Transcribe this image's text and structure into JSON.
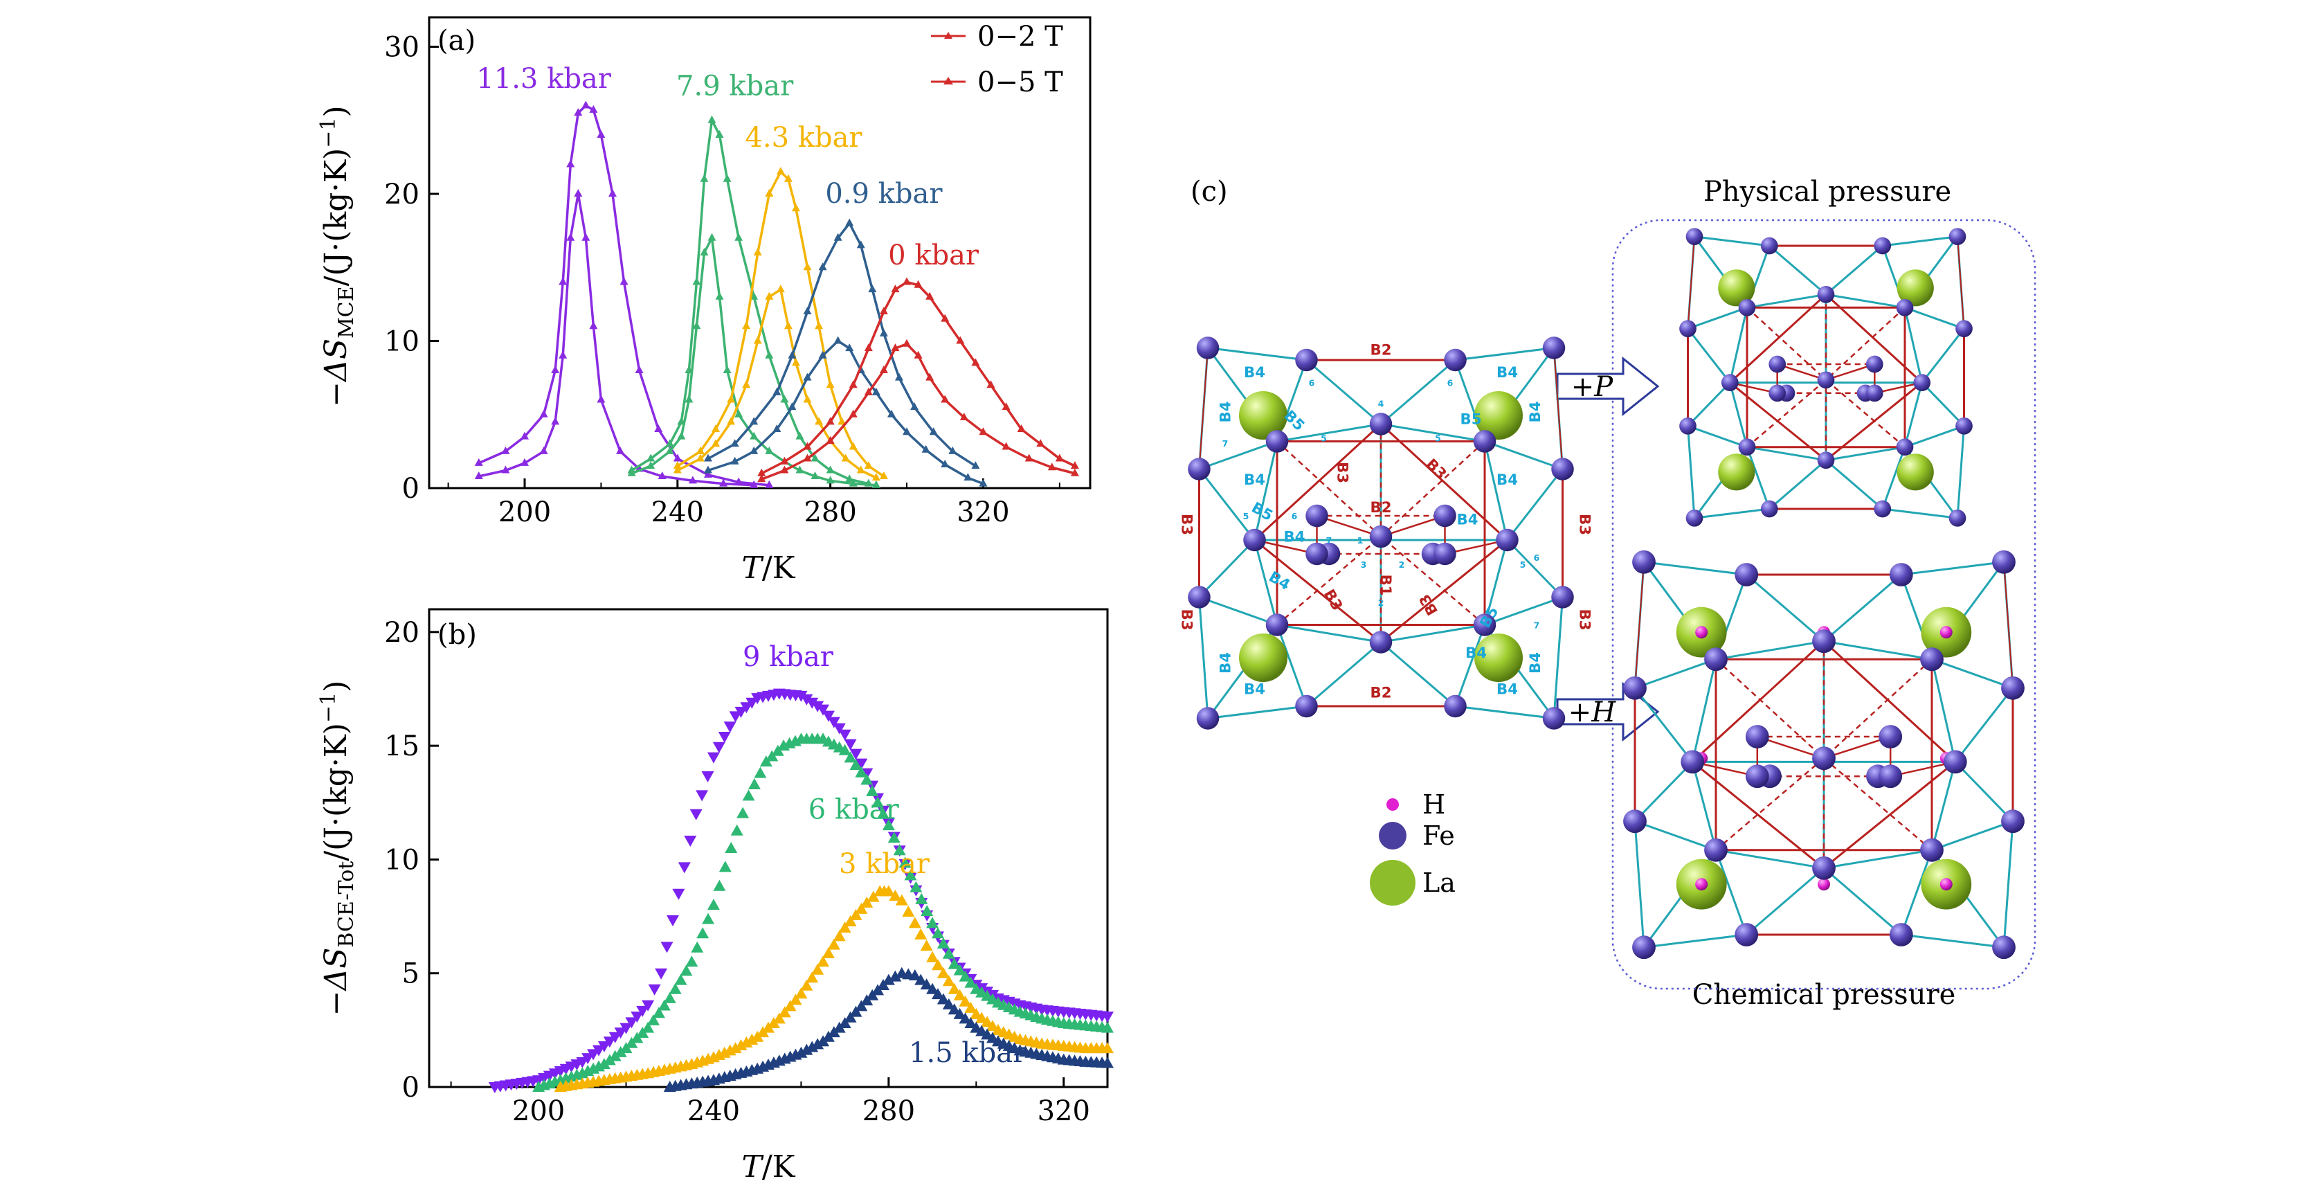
{
  "panel_a": {
    "tag": "(a)",
    "ylabel_pre": "−ΔS",
    "ylabel_sub": "MCE",
    "ylabel_post": "/(J·(kg·K)",
    "ylabel_exp": "−1",
    "ylabel_close": ")",
    "xlabel_var": "T",
    "xlabel_unit": "/K",
    "legend": [
      {
        "label": "0−2 T",
        "color": "#d42b2b"
      },
      {
        "label": "0−5 T",
        "color": "#d42b2b"
      }
    ]
  },
  "panel_b": {
    "tag": "(b)",
    "ylabel_pre": "−ΔS",
    "ylabel_sub": "BCE-Tot",
    "ylabel_post": "/(J·(kg·K)",
    "ylabel_exp": "−1",
    "ylabel_close": ")",
    "xlabel_var": "T",
    "xlabel_unit": "/K"
  },
  "panel_c": {
    "tag": "(c)",
    "physical_label": "Physical pressure",
    "chemical_label": "Chemical pressure",
    "arrow_p": "+P",
    "arrow_h": "+H",
    "legend": [
      {
        "label": "H",
        "color": "#e020d0"
      },
      {
        "label": "Fe",
        "color": "#4a3f9e"
      },
      {
        "label": "La",
        "color": "#8dbd2a"
      }
    ],
    "bond_labels_cyan": [
      "B4",
      "B4",
      "B4",
      "B4",
      "B4",
      "B4",
      "B4",
      "B4",
      "B4",
      "B4",
      "B5",
      "B5",
      "B5",
      "B5",
      "B4",
      "B4",
      "B4",
      "B4"
    ],
    "bond_labels_red": [
      "B2",
      "B2",
      "B2",
      "B1",
      "B3",
      "B3",
      "B3",
      "B3",
      "B3",
      "B3",
      "B3",
      "B3"
    ],
    "site_numbers": [
      "1",
      "2",
      "3",
      "4",
      "5",
      "6",
      "7"
    ]
  },
  "chart_data": [
    {
      "type": "line",
      "panel": "a",
      "xlim": [
        175,
        348
      ],
      "ylim": [
        0,
        32
      ],
      "xticks": [
        200,
        240,
        280,
        320
      ],
      "yticks": [
        0,
        10,
        20,
        30
      ],
      "legend_position": "top-right",
      "series": [
        {
          "name": "11.3 kbar",
          "field": "0−5 T",
          "color": "#8a2be2",
          "x": [
            188,
            195,
            200,
            205,
            208,
            210,
            212,
            214,
            216,
            218,
            220,
            223,
            226,
            230,
            235,
            240,
            248,
            256,
            264
          ],
          "y": [
            1.7,
            2.5,
            3.5,
            5,
            8,
            14,
            22,
            25.5,
            26,
            25.7,
            24,
            20,
            14,
            8,
            4,
            2,
            0.9,
            0.4,
            0.2
          ]
        },
        {
          "name": "",
          "field": "0−2 T",
          "color": "#8a2be2",
          "x": [
            188,
            195,
            200,
            205,
            208,
            210,
            212,
            214,
            216,
            218,
            220,
            225,
            230,
            236,
            244,
            252,
            260
          ],
          "y": [
            0.8,
            1.2,
            1.7,
            2.5,
            4.5,
            9,
            17,
            20,
            17,
            11,
            6,
            2.5,
            1.3,
            0.8,
            0.5,
            0.3,
            0.2
          ]
        },
        {
          "name": "7.9 kbar",
          "field": "0−5 T",
          "color": "#3cb371",
          "x": [
            228,
            233,
            238,
            241,
            243,
            245,
            247,
            249,
            251,
            253,
            256,
            260,
            264,
            268,
            272,
            276,
            280,
            285,
            290
          ],
          "y": [
            1.2,
            2,
            3,
            4.5,
            8,
            14,
            21,
            25,
            24,
            21,
            17,
            13,
            9,
            6,
            3.5,
            2,
            1.2,
            0.6,
            0.3
          ]
        },
        {
          "name": "",
          "field": "0−2 T",
          "color": "#3cb371",
          "x": [
            228,
            233,
            238,
            241,
            243,
            245,
            247,
            249,
            251,
            253,
            256,
            260,
            264,
            268,
            272,
            276,
            280,
            286,
            292
          ],
          "y": [
            1,
            1.5,
            2.5,
            3.5,
            6,
            11,
            16,
            17,
            13,
            8,
            5,
            3.5,
            2.5,
            1.8,
            1.2,
            0.8,
            0.5,
            0.3,
            0.2
          ]
        },
        {
          "name": "4.3 kbar",
          "field": "0−5 T",
          "color": "#f4b400",
          "x": [
            240,
            246,
            250,
            254,
            258,
            261,
            264,
            267,
            269,
            271,
            274,
            277,
            280,
            283,
            286,
            290,
            294
          ],
          "y": [
            1.5,
            2.5,
            4,
            6,
            11,
            16,
            20,
            21.5,
            21,
            19,
            15,
            11,
            7,
            4.5,
            2.8,
            1.5,
            0.8
          ]
        },
        {
          "name": "",
          "field": "0−2 T",
          "color": "#f4b400",
          "x": [
            240,
            246,
            250,
            254,
            258,
            261,
            264,
            267,
            269,
            271,
            274,
            277,
            280,
            284,
            288,
            292
          ],
          "y": [
            1.2,
            2,
            3,
            4.5,
            7,
            10,
            13,
            13.5,
            11,
            8.5,
            6,
            4.5,
            3.2,
            2,
            1.2,
            0.7
          ]
        },
        {
          "name": "0.9 kbar",
          "field": "0−5 T",
          "color": "#2f5f8f",
          "x": [
            248,
            255,
            260,
            266,
            270,
            274,
            278,
            282,
            285,
            288,
            291,
            294,
            298,
            302,
            307,
            312,
            318
          ],
          "y": [
            2,
            3,
            4.5,
            6.5,
            9,
            12,
            15,
            17,
            18,
            16.5,
            13.5,
            10.5,
            7.5,
            5.5,
            3.8,
            2.5,
            1.5
          ]
        },
        {
          "name": "",
          "field": "0−2 T",
          "color": "#2f5f8f",
          "x": [
            248,
            255,
            260,
            266,
            270,
            274,
            278,
            282,
            285,
            288,
            292,
            296,
            300,
            305,
            310,
            316,
            320
          ],
          "y": [
            1.2,
            1.8,
            2.5,
            4,
            5.5,
            7.5,
            9,
            10,
            9.5,
            8,
            6.5,
            5,
            3.8,
            2.6,
            1.6,
            0.7,
            0.3
          ]
        },
        {
          "name": "0 kbar",
          "field": "0−5 T",
          "color": "#d42b2b",
          "x": [
            262,
            268,
            274,
            280,
            286,
            290,
            294,
            297,
            300,
            303,
            306,
            310,
            314,
            318,
            322,
            326,
            330,
            335,
            340,
            344
          ],
          "y": [
            1,
            1.8,
            2.8,
            4.5,
            7,
            9.5,
            12,
            13.5,
            14,
            13.8,
            13,
            11.5,
            10,
            8.5,
            7,
            5.5,
            4,
            3,
            2,
            1.5
          ]
        },
        {
          "name": "",
          "field": "0−2 T",
          "color": "#d42b2b",
          "x": [
            262,
            268,
            274,
            280,
            286,
            290,
            294,
            297,
            300,
            303,
            306,
            310,
            315,
            320,
            326,
            332,
            338,
            344
          ],
          "y": [
            0.6,
            1.2,
            2,
            3.2,
            5,
            6.5,
            8,
            9.5,
            9.8,
            9,
            7.5,
            6,
            4.8,
            3.8,
            2.8,
            2,
            1.4,
            1
          ]
        }
      ],
      "annotations": [
        {
          "text": "11.3 kbar",
          "x": 205,
          "y": 27.2,
          "color": "#8a2be2"
        },
        {
          "text": "7.9 kbar",
          "x": 255,
          "y": 26.7,
          "color": "#3cb371"
        },
        {
          "text": "4.3 kbar",
          "x": 273,
          "y": 23.2,
          "color": "#f4b400"
        },
        {
          "text": "0.9 kbar",
          "x": 294,
          "y": 19.4,
          "color": "#2f5f8f"
        },
        {
          "text": "0 kbar",
          "x": 307,
          "y": 15.2,
          "color": "#d42b2b"
        }
      ]
    },
    {
      "type": "scatter",
      "panel": "b",
      "xlim": [
        175,
        330
      ],
      "ylim": [
        0,
        21
      ],
      "xticks": [
        200,
        240,
        280,
        320
      ],
      "yticks": [
        0,
        5,
        10,
        15,
        20
      ],
      "series": [
        {
          "name": "9 kbar",
          "color": "#7b22f0",
          "marker": "triangle-down",
          "x": [
            190,
            200,
            210,
            215,
            220,
            225,
            228,
            232,
            236,
            240,
            245,
            250,
            255,
            260,
            265,
            270,
            275,
            280,
            285,
            290,
            295,
            300,
            305,
            310,
            315,
            320,
            325,
            330
          ],
          "y": [
            0,
            0.3,
            1.1,
            1.8,
            2.6,
            3.6,
            5,
            8.5,
            12,
            14.5,
            16.3,
            17.1,
            17.3,
            17.2,
            16.6,
            15.5,
            13.8,
            11.6,
            9.2,
            7,
            5.5,
            4.5,
            3.9,
            3.6,
            3.4,
            3.3,
            3.2,
            3.1
          ]
        },
        {
          "name": "6 kbar",
          "color": "#2eb873",
          "marker": "triangle-up",
          "x": [
            200,
            210,
            215,
            220,
            225,
            230,
            235,
            240,
            244,
            248,
            252,
            256,
            260,
            265,
            270,
            275,
            280,
            285,
            290,
            295,
            300,
            305,
            310,
            315,
            320,
            325,
            330
          ],
          "y": [
            0,
            0.6,
            1,
            1.7,
            2.6,
            3.9,
            5.5,
            8,
            10.5,
            12.8,
            14.3,
            15,
            15.3,
            15.3,
            14.8,
            13.5,
            11.5,
            9.3,
            7.2,
            5.4,
            4.3,
            3.7,
            3.3,
            3,
            2.8,
            2.7,
            2.6
          ]
        },
        {
          "name": "3 kbar",
          "color": "#f6b400",
          "marker": "triangle-up",
          "x": [
            205,
            215,
            225,
            235,
            240,
            245,
            250,
            255,
            260,
            265,
            270,
            275,
            278,
            280,
            283,
            286,
            290,
            295,
            300,
            305,
            310,
            315,
            320,
            325,
            330
          ],
          "y": [
            0,
            0.3,
            0.6,
            1,
            1.3,
            1.7,
            2.2,
            3,
            4.1,
            5.5,
            7,
            8.1,
            8.6,
            8.6,
            8.2,
            7.2,
            5.7,
            4.3,
            3.2,
            2.5,
            2.1,
            1.9,
            1.8,
            1.7,
            1.7
          ]
        },
        {
          "name": "1.5 kbar",
          "color": "#1f3f7f",
          "marker": "triangle-up",
          "x": [
            230,
            240,
            250,
            260,
            265,
            270,
            275,
            280,
            283,
            286,
            290,
            295,
            300,
            305,
            310,
            315,
            320,
            325,
            330
          ],
          "y": [
            0,
            0.3,
            0.8,
            1.5,
            2,
            2.8,
            3.8,
            4.7,
            5,
            4.9,
            4.3,
            3.4,
            2.6,
            2,
            1.6,
            1.4,
            1.2,
            1.1,
            1.05
          ]
        }
      ],
      "annotations": [
        {
          "text": "9 kbar",
          "x": 257,
          "y": 18.5,
          "color": "#7b22f0"
        },
        {
          "text": "6 kbar",
          "x": 272,
          "y": 11.8,
          "color": "#2eb873"
        },
        {
          "text": "3 kbar",
          "x": 279,
          "y": 9.4,
          "color": "#f6b400"
        },
        {
          "text": "1.5 kbar",
          "x": 298,
          "y": 1.1,
          "color": "#1f3f7f"
        }
      ]
    }
  ]
}
